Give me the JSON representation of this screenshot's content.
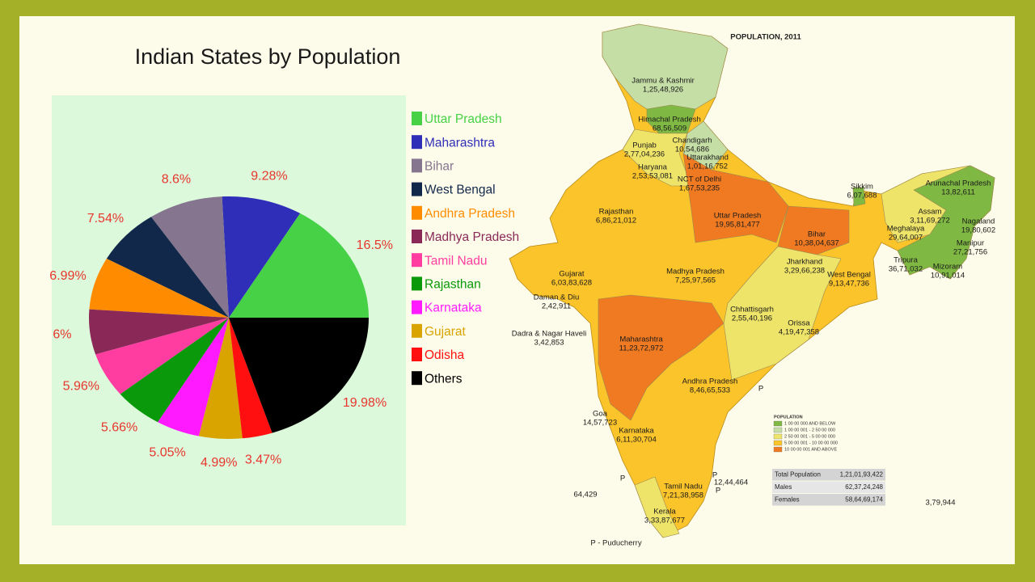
{
  "chart_data": {
    "type": "pie",
    "title": "Indian States by Population",
    "categories": [
      "Uttar Pradesh",
      "Maharashtra",
      "Bihar",
      "West Bengal",
      "Andhra Pradesh",
      "Madhya Pradesh",
      "Tamil Nadu",
      "Rajasthan",
      "Karnataka",
      "Gujarat",
      "Odisha",
      "Others"
    ],
    "values": [
      16.5,
      9.28,
      8.6,
      7.54,
      6.99,
      6,
      5.96,
      5.66,
      5.05,
      4.99,
      3.47,
      19.98
    ],
    "value_labels": [
      "16.5%",
      "9.28%",
      "8.6%",
      "7.54%",
      "6.99%",
      "6%",
      "5.96%",
      "5.66%",
      "5.05%",
      "4.99%",
      "3.47%",
      "19.98%"
    ],
    "colors": [
      "#47d147",
      "#2e2eb8",
      "#85758f",
      "#12284a",
      "#ff8c00",
      "#8a2858",
      "#ff3da0",
      "#0a990a",
      "#ff1aff",
      "#d9a400",
      "#ff0f0f",
      "#000000"
    ],
    "label_color": "#e8362d",
    "legend": "right"
  },
  "map": {
    "title": "POPULATION, 2011",
    "states": [
      {
        "name": "Jammu & Kashmir",
        "population": "1,25,48,926"
      },
      {
        "name": "Himachal Pradesh",
        "population": "68,56,509"
      },
      {
        "name": "Punjab",
        "population": "2,77,04,236"
      },
      {
        "name": "Chandigarh",
        "population": "10,54,686"
      },
      {
        "name": "Uttarakhand",
        "population": "1,01,16,752"
      },
      {
        "name": "Haryana",
        "population": "2,53,53,081"
      },
      {
        "name": "NCT of Delhi",
        "population": "1,67,53,235"
      },
      {
        "name": "Rajasthan",
        "population": "6,86,21,012"
      },
      {
        "name": "Uttar Pradesh",
        "population": "19,95,81,477"
      },
      {
        "name": "Bihar",
        "population": "10,38,04,637"
      },
      {
        "name": "Sikkim",
        "population": "6,07,688"
      },
      {
        "name": "Arunachal Pradesh",
        "population": "13,82,611"
      },
      {
        "name": "Assam",
        "population": "3,11,69,272"
      },
      {
        "name": "Nagaland",
        "population": "19,80,602"
      },
      {
        "name": "Meghalaya",
        "population": "29,64,007"
      },
      {
        "name": "Manipur",
        "population": "27,21,756"
      },
      {
        "name": "Tripura",
        "population": "36,71,032"
      },
      {
        "name": "Mizoram",
        "population": "10,91,014"
      },
      {
        "name": "Gujarat",
        "population": "6,03,83,628"
      },
      {
        "name": "Madhya Pradesh",
        "population": "7,25,97,565"
      },
      {
        "name": "Jharkhand",
        "population": "3,29,66,238"
      },
      {
        "name": "West Bengal",
        "population": "9,13,47,736"
      },
      {
        "name": "Chhattisgarh",
        "population": "2,55,40,196"
      },
      {
        "name": "Orissa",
        "population": "4,19,47,358"
      },
      {
        "name": "Daman & Diu",
        "population": "2,42,911"
      },
      {
        "name": "Dadra & Nagar Haveli",
        "population": "3,42,853"
      },
      {
        "name": "Maharashtra",
        "population": "11,23,72,972"
      },
      {
        "name": "Andhra Pradesh",
        "population": "8,46,65,533"
      },
      {
        "name": "Goa",
        "population": "14,57,723"
      },
      {
        "name": "Karnataka",
        "population": "6,11,30,704"
      },
      {
        "name": "Tamil Nadu",
        "population": "7,21,38,958"
      },
      {
        "name": "Kerala",
        "population": "3,33,87,677"
      }
    ],
    "other_labels": [
      "P",
      "P",
      "P",
      "P",
      "12,44,464",
      "64,429",
      "3,79,944"
    ],
    "note": "P - Puducherry",
    "legend": {
      "title": "POPULATION",
      "items": [
        {
          "label": "1 00 00 000 AND BELOW",
          "color": "#7fb843"
        },
        {
          "label": "1 00 00 001 - 2 50 00 000",
          "color": "#c5dea6"
        },
        {
          "label": "2 50 00 001 - 5 00 00 000",
          "color": "#efe46a"
        },
        {
          "label": "5 00 00 001 - 10 00 00 000",
          "color": "#fbc42a"
        },
        {
          "label": "10 00 00 001 AND ABOVE",
          "color": "#f07a22"
        }
      ]
    },
    "totals": [
      [
        "Total Population",
        "1,21,01,93,422"
      ],
      [
        "Males",
        "62,37,24,248"
      ],
      [
        "Females",
        "58,64,69,174"
      ]
    ]
  }
}
